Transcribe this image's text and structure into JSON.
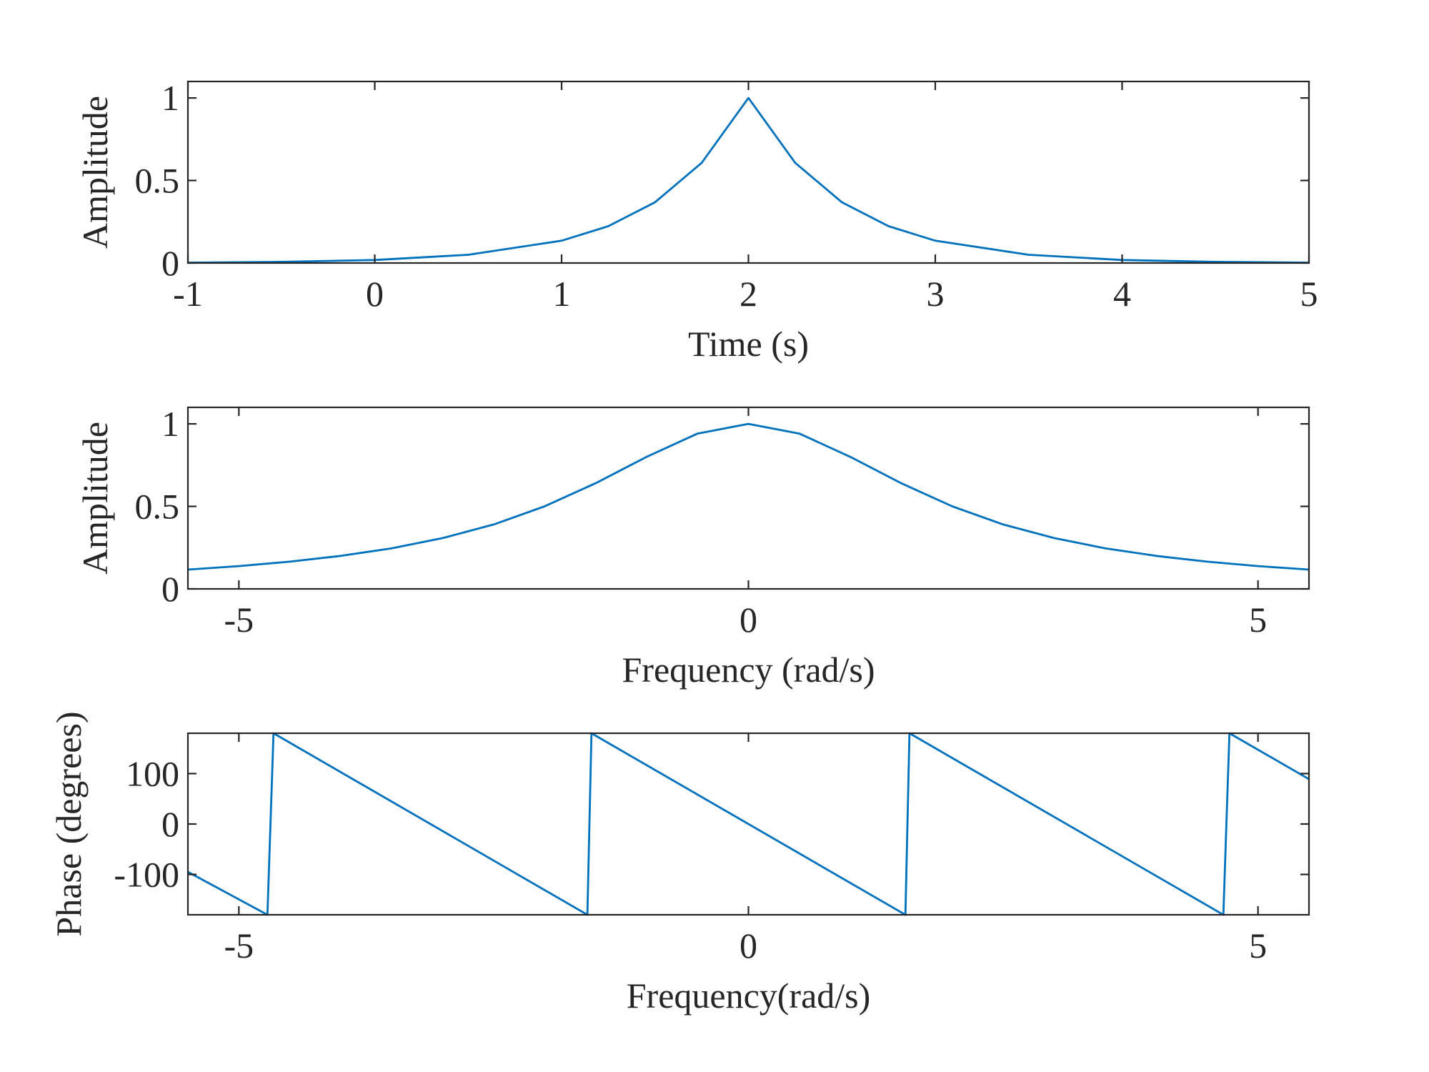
{
  "colors": {
    "line": "#0072BD",
    "axes": "#262626"
  },
  "chart_data": [
    {
      "type": "line",
      "title": "",
      "xlabel": "Time (s)",
      "ylabel": "Amplitude",
      "xlim": [
        -1,
        5
      ],
      "ylim": [
        0,
        1.1
      ],
      "xticks": [
        -1,
        0,
        1,
        2,
        3,
        4,
        5
      ],
      "xtick_labels": [
        "-1",
        "0",
        "1",
        "2",
        "3",
        "4",
        "5"
      ],
      "yticks": [
        0,
        0.5,
        1
      ],
      "ytick_labels": [
        "0",
        "0.5",
        "1"
      ],
      "grid": false,
      "series": [
        {
          "x": [
            -1,
            -0.5,
            0,
            0.5,
            1,
            1.25,
            1.5,
            1.75,
            2,
            2.25,
            2.5,
            2.75,
            3,
            3.5,
            4,
            4.5,
            5
          ],
          "y": [
            0.002,
            0.007,
            0.018,
            0.05,
            0.135,
            0.223,
            0.368,
            0.607,
            1,
            0.607,
            0.368,
            0.223,
            0.135,
            0.05,
            0.018,
            0.007,
            0.002
          ]
        }
      ]
    },
    {
      "type": "line",
      "title": "",
      "xlabel": "Frequency (rad/s)",
      "ylabel": "Amplitude",
      "xlim": [
        -5.5,
        5.5
      ],
      "ylim": [
        0,
        1.1
      ],
      "xticks": [
        -5,
        0,
        5
      ],
      "xtick_labels": [
        "-5",
        "0",
        "5"
      ],
      "yticks": [
        0,
        0.5,
        1
      ],
      "ytick_labels": [
        "0",
        "0.5",
        "1"
      ],
      "grid": false,
      "series": [
        {
          "x": [
            -5.5,
            -5,
            -4.5,
            -4,
            -3.5,
            -3,
            -2.5,
            -2,
            -1.5,
            -1,
            -0.5,
            0,
            0.5,
            1,
            1.5,
            2,
            2.5,
            3,
            3.5,
            4,
            4.5,
            5,
            5.5
          ],
          "y": [
            0.117,
            0.138,
            0.165,
            0.2,
            0.246,
            0.308,
            0.39,
            0.5,
            0.64,
            0.8,
            0.941,
            1,
            0.941,
            0.8,
            0.64,
            0.5,
            0.39,
            0.308,
            0.246,
            0.2,
            0.165,
            0.138,
            0.117
          ]
        }
      ]
    },
    {
      "type": "line",
      "title": "",
      "xlabel": "Frequency(rad/s)",
      "ylabel": "Phase (degrees)",
      "xlim": [
        -5.5,
        5.5
      ],
      "ylim": [
        -180,
        180
      ],
      "xticks": [
        -5,
        0,
        5
      ],
      "xtick_labels": [
        "-5",
        "0",
        "5"
      ],
      "yticks": [
        -100,
        0,
        100
      ],
      "ytick_labels": [
        "-100",
        "0",
        "100"
      ],
      "grid": false,
      "series": [
        {
          "x": [
            -5.5,
            -4.72,
            -4.66,
            -1.58,
            -1.54,
            1.54,
            1.58,
            4.66,
            4.72,
            5.5
          ],
          "y": [
            -95,
            -180,
            180,
            -180,
            180,
            -180,
            180,
            -180,
            180,
            89
          ]
        }
      ]
    }
  ]
}
